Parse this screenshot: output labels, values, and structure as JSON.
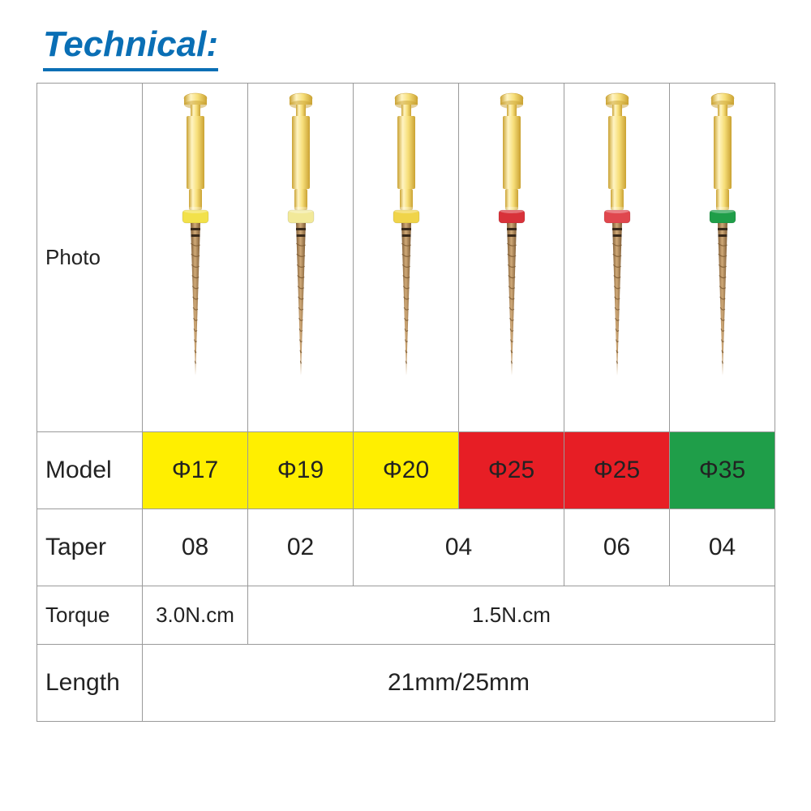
{
  "title": "Technical:",
  "title_color": "#0a6fb5",
  "title_fontsize": 44,
  "border_color": "#9a9a9a",
  "bg_color": "#ffffff",
  "text_color": "#222222",
  "row_labels": {
    "photo": "Photo",
    "model": "Model",
    "taper": "Taper",
    "torque": "Torque",
    "length": "Length"
  },
  "columns": [
    {
      "model": "Φ17",
      "model_bg": "#ffef00",
      "ring_color": "#f2e14a"
    },
    {
      "model": "Φ19",
      "model_bg": "#ffef00",
      "ring_color": "#f2e999"
    },
    {
      "model": "Φ20",
      "model_bg": "#ffef00",
      "ring_color": "#f0d44a"
    },
    {
      "model": "Φ25",
      "model_bg": "#e71e25",
      "ring_color": "#d8323a"
    },
    {
      "model": "Φ25",
      "model_bg": "#e71e25",
      "ring_color": "#e0474e"
    },
    {
      "model": "Φ35",
      "model_bg": "#1f9e49",
      "ring_color": "#1f9e49"
    }
  ],
  "taper_cells": [
    {
      "value": "08",
      "span": 1
    },
    {
      "value": "02",
      "span": 1
    },
    {
      "value": "04",
      "span": 2
    },
    {
      "value": "06",
      "span": 1
    },
    {
      "value": "04",
      "span": 1
    }
  ],
  "torque_cells": [
    {
      "value": "3.0N.cm",
      "span": 1
    },
    {
      "value": "1.5N.cm",
      "span": 5
    }
  ],
  "length_cells": [
    {
      "value": "21mm/25mm",
      "span": 6
    }
  ],
  "file_svg_colors": {
    "shank_light": "#f7df7a",
    "shank_dark": "#caa233",
    "shank_hl": "#fff4c2",
    "tip_light": "#cfa978",
    "tip_dark": "#7d5a33",
    "band_color": "#3a2a1a"
  }
}
